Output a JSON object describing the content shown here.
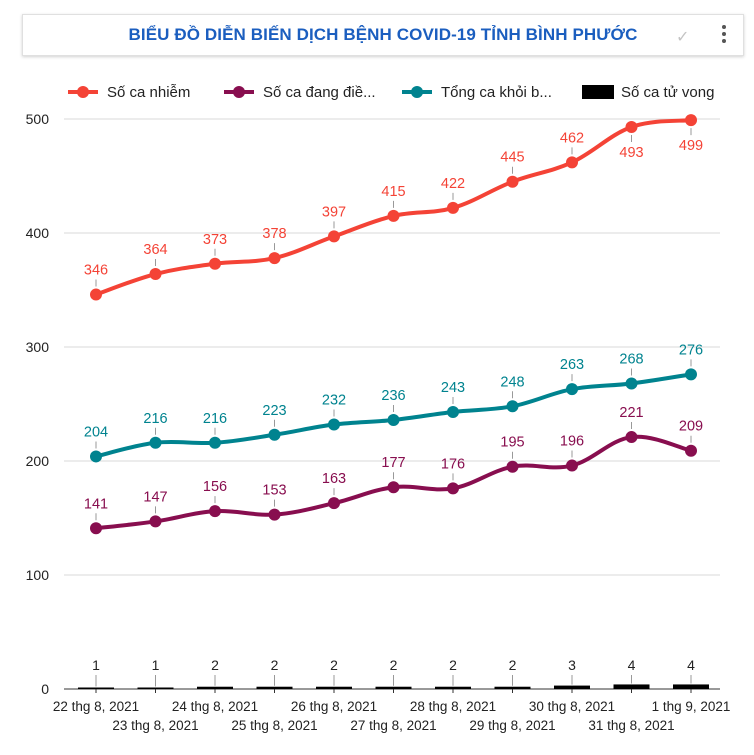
{
  "chart_data": {
    "type": "line",
    "title": "BIỂU ĐỒ DIỄN BIẾN DỊCH BỆNH COVID-19 TỈNH BÌNH PHƯỚC",
    "categories": [
      "22 thg 8, 2021",
      "23 thg 8, 2021",
      "24 thg 8, 2021",
      "25 thg 8, 2021",
      "26 thg 8, 2021",
      "27 thg 8, 2021",
      "28 thg 8, 2021",
      "29 thg 8, 2021",
      "30 thg 8, 2021",
      "31 thg 8, 2021",
      "1 thg 9, 2021"
    ],
    "ylim": [
      0,
      500
    ],
    "yticks": [
      0,
      100,
      200,
      300,
      400,
      500
    ],
    "series": [
      {
        "name": "Số ca nhiễm",
        "legend_label": "Số ca nhiễm",
        "kind": "line",
        "color": "#f44336",
        "values": [
          346,
          364,
          373,
          378,
          397,
          415,
          422,
          445,
          462,
          493,
          499
        ]
      },
      {
        "name": "Số ca đang điều trị",
        "legend_label": "Số ca đang điề...",
        "kind": "line",
        "color": "#880e4f",
        "values": [
          141,
          147,
          156,
          153,
          163,
          177,
          176,
          195,
          196,
          221,
          209
        ]
      },
      {
        "name": "Tổng ca khỏi bệnh",
        "legend_label": "Tổng ca khỏi b...",
        "kind": "line",
        "color": "#00838f",
        "values": [
          204,
          216,
          216,
          223,
          232,
          236,
          243,
          248,
          263,
          268,
          276
        ]
      },
      {
        "name": "Số ca tử vong",
        "legend_label": "Số ca tử vong",
        "kind": "bar",
        "color": "#000000",
        "values": [
          1,
          1,
          2,
          2,
          2,
          2,
          2,
          2,
          3,
          4,
          4
        ]
      }
    ]
  },
  "ui": {
    "menu_icon": "kebab-menu-icon",
    "check_icon": "check-icon"
  }
}
